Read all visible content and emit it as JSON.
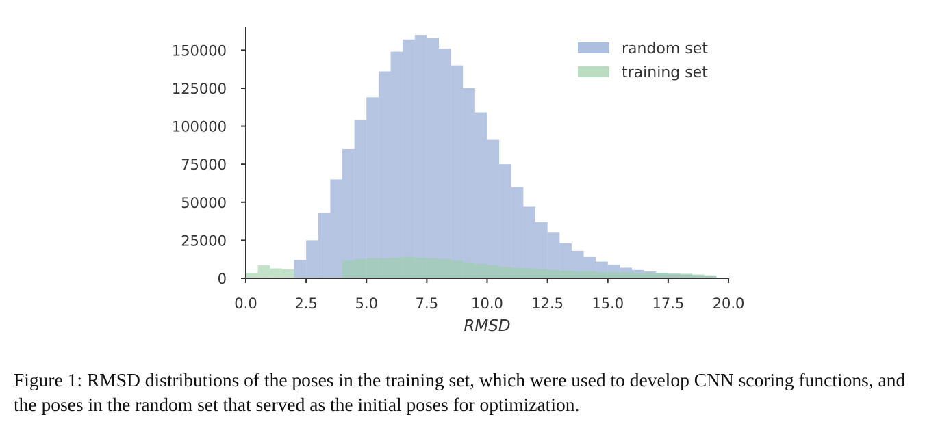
{
  "chart_data": {
    "type": "histogram",
    "xlabel": "RMSD",
    "ylabel": "",
    "xlim": [
      0.0,
      20.0
    ],
    "ylim": [
      0,
      165000
    ],
    "x_ticks": [
      "0.0",
      "2.5",
      "5.0",
      "7.5",
      "10.0",
      "12.5",
      "15.0",
      "17.5",
      "20.0"
    ],
    "y_ticks": [
      "0",
      "25000",
      "50000",
      "75000",
      "100000",
      "125000",
      "150000"
    ],
    "grid": false,
    "legend_position": "top-right",
    "colors": {
      "random set": "#9fb4d8",
      "training set": "#9ccfa8",
      "overlap": "#8dbba6"
    },
    "series": [
      {
        "name": "random set",
        "bin_edges": [
          2.0,
          2.5,
          3.0,
          3.5,
          4.0,
          4.5,
          5.0,
          5.5,
          6.0,
          6.5,
          7.0,
          7.5,
          8.0,
          8.5,
          9.0,
          9.5,
          10.0,
          10.5,
          11.0,
          11.5,
          12.0,
          12.5,
          13.0,
          13.5,
          14.0,
          14.5,
          15.0,
          15.5,
          16.0,
          16.5,
          17.0,
          17.5,
          18.0,
          18.5,
          19.0,
          19.5
        ],
        "values": [
          12000,
          25000,
          43000,
          65000,
          85000,
          104000,
          119000,
          136000,
          149000,
          157000,
          160000,
          158000,
          151000,
          140000,
          125000,
          109000,
          91000,
          75000,
          60000,
          47000,
          37000,
          30000,
          23000,
          18000,
          14000,
          11000,
          9000,
          7000,
          5500,
          4500,
          3500,
          3000,
          2500,
          2000,
          1500
        ]
      },
      {
        "name": "training set",
        "bin_edges": [
          0.0,
          0.5,
          1.0,
          1.5,
          2.0,
          4.0,
          4.5,
          5.0,
          5.5,
          6.0,
          6.5,
          7.0,
          7.5,
          8.0,
          8.5,
          9.0,
          9.5,
          10.0,
          10.5,
          11.0,
          11.5,
          12.0,
          12.5,
          13.0,
          13.5,
          14.0,
          14.5,
          15.0,
          15.5,
          16.0,
          16.5,
          17.0,
          17.5,
          18.0,
          18.5,
          19.0,
          19.5
        ],
        "values": [
          3500,
          8500,
          6500,
          6000,
          0,
          11500,
          12500,
          13000,
          13000,
          13500,
          14000,
          13500,
          13000,
          12500,
          11500,
          10500,
          9500,
          8500,
          7500,
          7000,
          6500,
          6000,
          5500,
          5000,
          4500,
          4500,
          4000,
          4000,
          4000,
          3500,
          3500,
          3500,
          3000,
          3000,
          2500,
          2000
        ]
      }
    ]
  },
  "caption": {
    "text": "Figure 1:  RMSD distributions of the poses in the training set, which were used to develop CNN scoring functions, and the poses in the random set that served as the initial poses for optimization."
  }
}
